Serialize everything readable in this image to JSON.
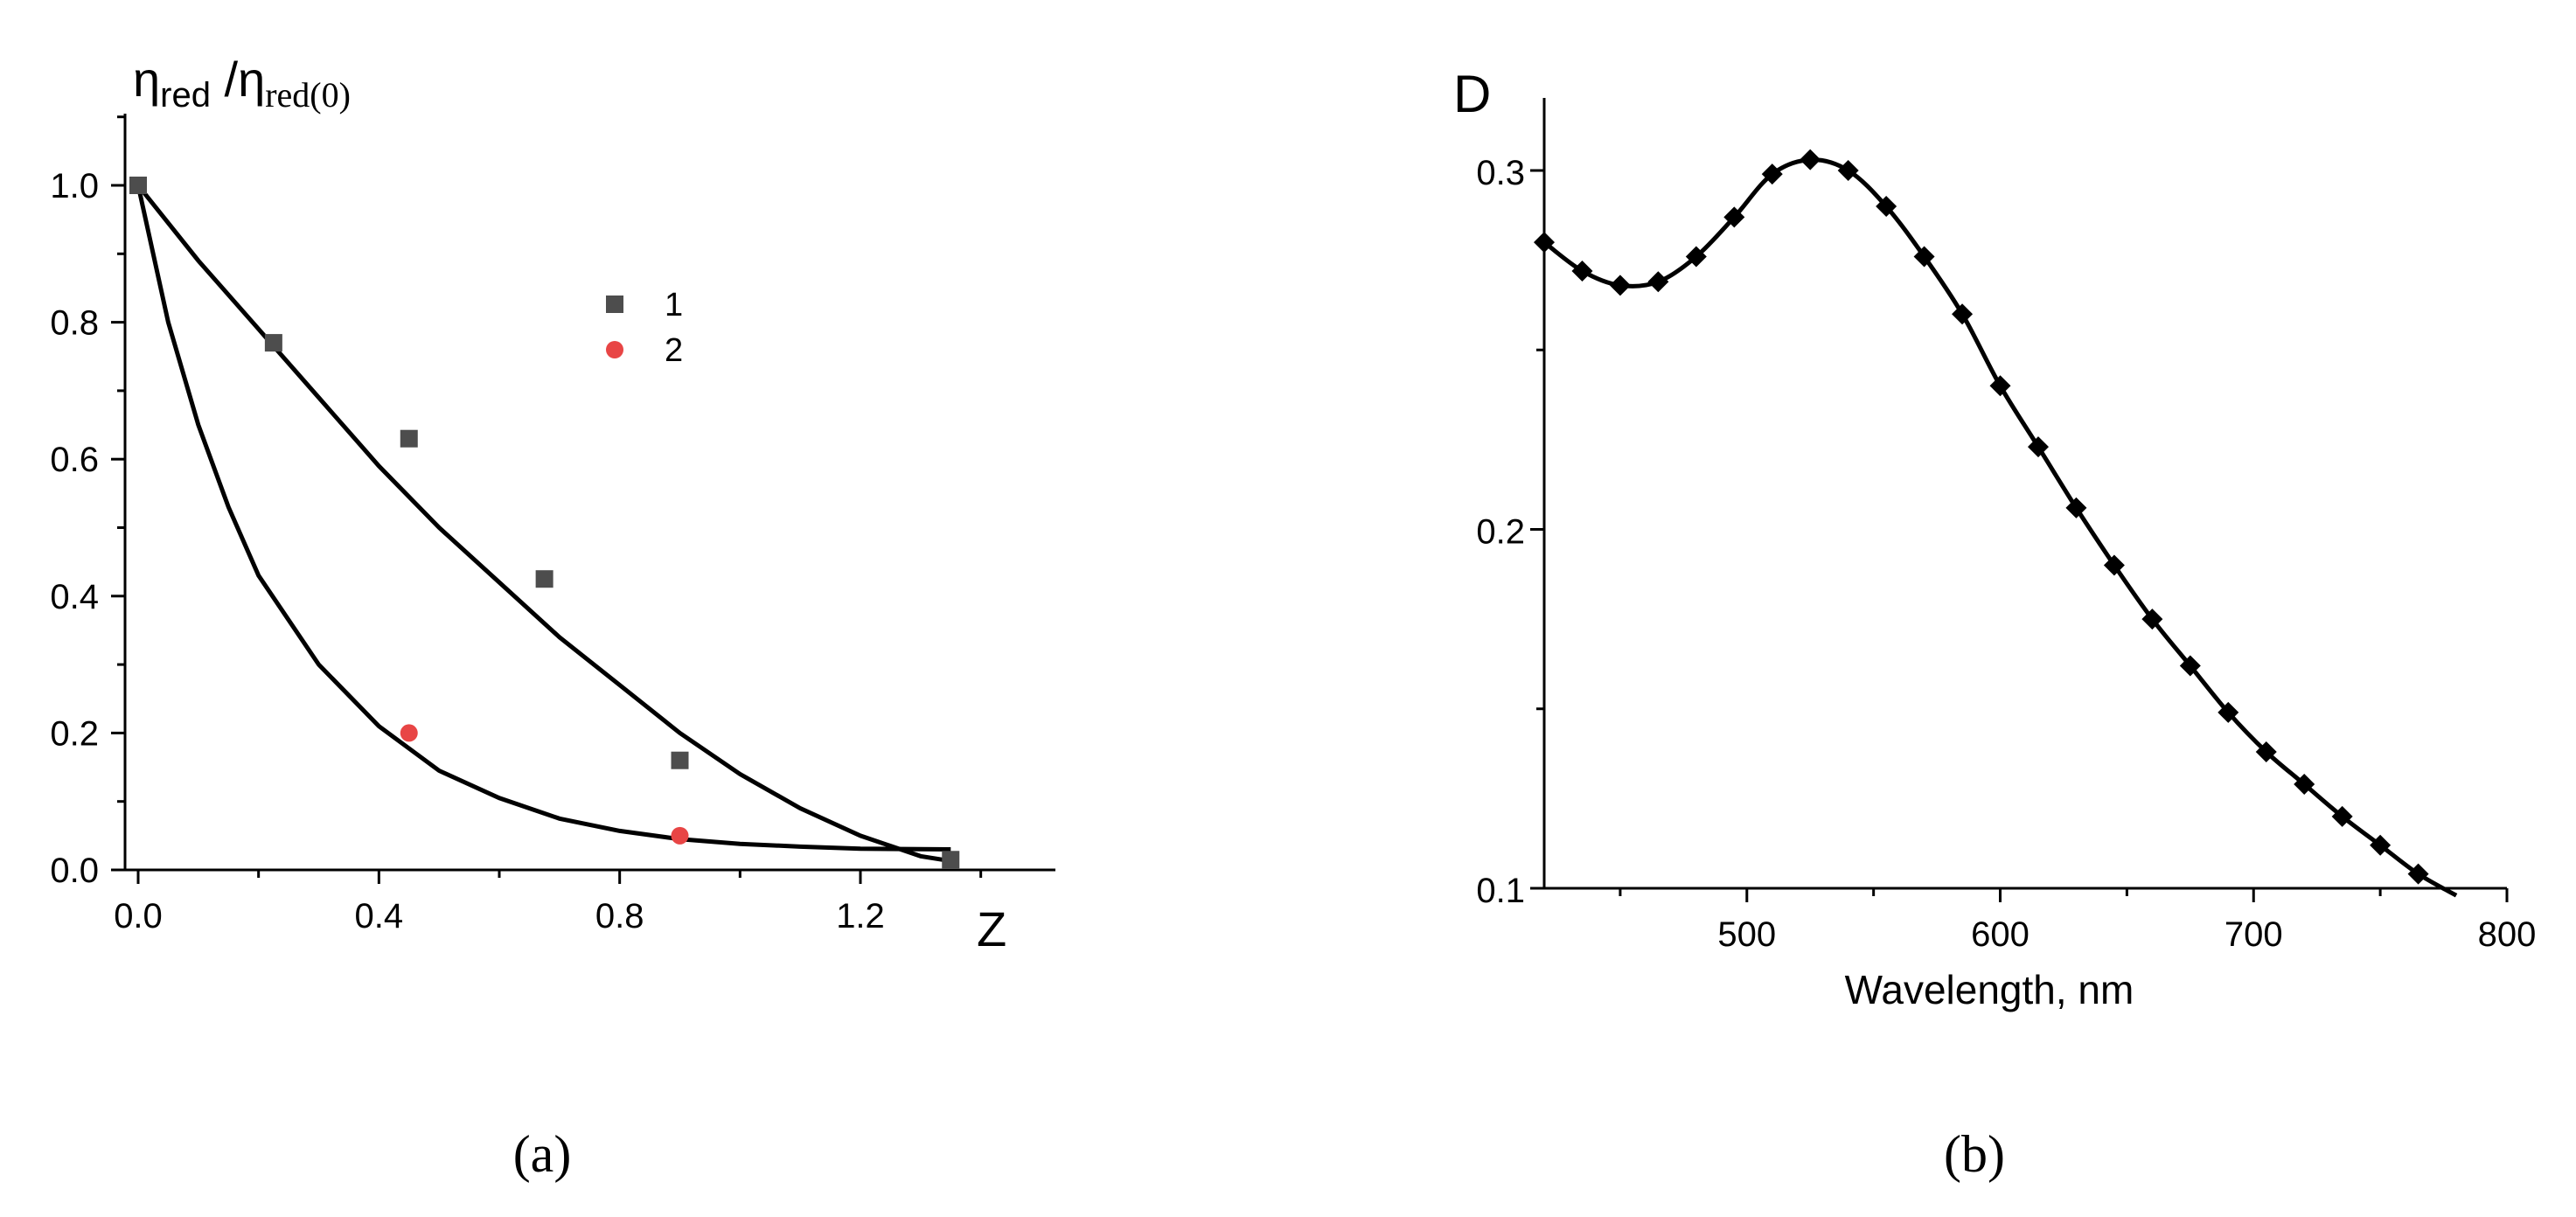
{
  "chart_data": [
    {
      "type": "scatter",
      "panel_label": "(a)",
      "ylabel_main": "η",
      "ylabel_sub": "red",
      "ylabel_sep": " /η",
      "ylabel_sub2": "red(0)",
      "xlabel": "Z",
      "xlim": [
        -0.03,
        1.5
      ],
      "ylim": [
        0,
        1.1
      ],
      "xticks": [
        0.0,
        0.4,
        0.8,
        1.2
      ],
      "xtick_labels": [
        "0.0",
        "0.4",
        "0.8",
        "1.2"
      ],
      "yticks": [
        0.0,
        0.2,
        0.4,
        0.6,
        0.8,
        1.0
      ],
      "ytick_labels": [
        "0.0",
        "0.2",
        "0.4",
        "0.6",
        "0.8",
        "1.0"
      ],
      "legend_position": "top-right",
      "series": [
        {
          "name": "1",
          "marker": "square",
          "color": "#4d4d4d",
          "x": [
            0.0,
            0.225,
            0.45,
            0.675,
            0.9,
            1.35
          ],
          "y": [
            1.0,
            0.77,
            0.63,
            0.425,
            0.16,
            0.015
          ]
        },
        {
          "name": "2",
          "marker": "circle",
          "color": "#e84545",
          "x": [
            0.45,
            0.9
          ],
          "y": [
            0.2,
            0.05
          ]
        }
      ],
      "fit_curves": [
        {
          "x": [
            0.0,
            0.1,
            0.2,
            0.3,
            0.4,
            0.5,
            0.6,
            0.7,
            0.8,
            0.9,
            1.0,
            1.1,
            1.2,
            1.3,
            1.35
          ],
          "y": [
            1.0,
            0.89,
            0.79,
            0.69,
            0.59,
            0.5,
            0.42,
            0.34,
            0.27,
            0.2,
            0.14,
            0.09,
            0.05,
            0.02,
            0.013
          ]
        },
        {
          "x": [
            0.0,
            0.05,
            0.1,
            0.15,
            0.2,
            0.3,
            0.4,
            0.5,
            0.6,
            0.7,
            0.8,
            0.9,
            1.0,
            1.1,
            1.2,
            1.35
          ],
          "y": [
            1.0,
            0.8,
            0.65,
            0.53,
            0.43,
            0.3,
            0.21,
            0.145,
            0.105,
            0.075,
            0.057,
            0.045,
            0.038,
            0.034,
            0.031,
            0.03
          ]
        }
      ]
    },
    {
      "type": "line",
      "panel_label": "(b)",
      "ylabel": "D",
      "xlabel": "Wavelength, nm",
      "xlim": [
        420,
        800
      ],
      "ylim": [
        0.1,
        0.32
      ],
      "xticks": [
        500,
        600,
        700,
        800
      ],
      "xtick_labels": [
        "500",
        "600",
        "700",
        "800"
      ],
      "yticks": [
        0.1,
        0.2,
        0.3
      ],
      "ytick_labels": [
        "0.1",
        "0.2",
        "0.3"
      ],
      "series": [
        {
          "marker": "diamond",
          "color": "#000000",
          "x": [
            420,
            435,
            450,
            465,
            480,
            495,
            510,
            525,
            540,
            555,
            570,
            585,
            600,
            615,
            630,
            645,
            660,
            675,
            690,
            705,
            720,
            735,
            750,
            765
          ],
          "y": [
            0.28,
            0.272,
            0.268,
            0.269,
            0.276,
            0.287,
            0.299,
            0.303,
            0.3,
            0.29,
            0.276,
            0.26,
            0.24,
            0.223,
            0.206,
            0.19,
            0.175,
            0.162,
            0.149,
            0.138,
            0.129,
            0.12,
            0.112,
            0.104
          ]
        }
      ],
      "line_x": [
        420,
        435,
        450,
        465,
        480,
        495,
        510,
        525,
        540,
        555,
        570,
        585,
        600,
        615,
        630,
        645,
        660,
        675,
        690,
        705,
        720,
        735,
        750,
        765,
        780
      ],
      "line_y": [
        0.28,
        0.272,
        0.268,
        0.269,
        0.276,
        0.287,
        0.299,
        0.303,
        0.3,
        0.29,
        0.276,
        0.26,
        0.24,
        0.223,
        0.206,
        0.19,
        0.175,
        0.162,
        0.149,
        0.138,
        0.129,
        0.12,
        0.112,
        0.104,
        0.098
      ]
    }
  ]
}
